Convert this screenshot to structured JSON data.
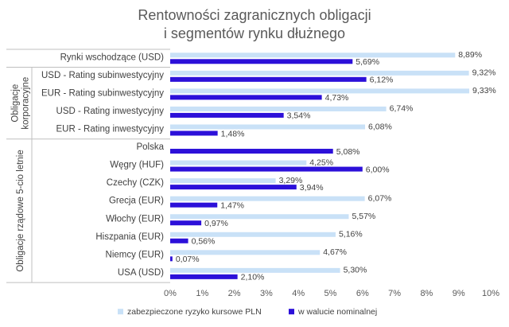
{
  "chart_data": {
    "type": "bar",
    "orientation": "horizontal",
    "title": "Rentowności zagranicznych obligacji i segmentów rynku dłużnego",
    "title_lines": [
      "Rentowności zagranicznych obligacji",
      "i segmentów rynku dłużnego"
    ],
    "categories": [
      "Rynki wschodzące (USD)",
      "USD - Rating subinwestycyjny",
      "EUR - Rating subinwestycyjny",
      "USD - Rating inwestycyjny",
      "EUR - Rating inwestycyjny",
      "Polska",
      "Węgry (HUF)",
      "Czechy (CZK)",
      "Grecja (EUR)",
      "Włochy (EUR)",
      "Hiszpania (EUR)",
      "Niemcy (EUR)",
      "USA (USD)"
    ],
    "groups": [
      {
        "label_lines": [
          "Obligacje",
          "korporacyjne"
        ],
        "first": 1,
        "last": 4
      },
      {
        "label_lines": [
          "Obligacje rządowe 5-cio letnie"
        ],
        "first": 5,
        "last": 12
      }
    ],
    "series": [
      {
        "name": "zabezpieczone ryzyko kursowe PLN",
        "color": "#c9e1f7",
        "values": [
          8.89,
          9.32,
          9.33,
          6.74,
          6.08,
          null,
          4.25,
          3.29,
          6.07,
          5.57,
          5.16,
          4.67,
          5.3
        ],
        "labels": [
          "8,89%",
          "9,32%",
          "9,33%",
          "6,74%",
          "6,08%",
          "",
          "4,25%",
          "3,29%",
          "6,07%",
          "5,57%",
          "5,16%",
          "4,67%",
          "5,30%"
        ]
      },
      {
        "name": "w walucie nominalnej",
        "color": "#2c10d9",
        "values": [
          5.69,
          6.12,
          4.73,
          3.54,
          1.48,
          5.08,
          6.0,
          3.94,
          1.47,
          0.97,
          0.56,
          0.07,
          2.1
        ],
        "labels": [
          "5,69%",
          "6,12%",
          "4,73%",
          "3,54%",
          "1,48%",
          "5,08%",
          "6,00%",
          "3,94%",
          "1,47%",
          "0,97%",
          "0,56%",
          "0,07%",
          "2,10%"
        ]
      }
    ],
    "xlim": [
      0,
      10
    ],
    "x_ticks": [
      "0%",
      "1%",
      "2%",
      "3%",
      "4%",
      "5%",
      "6%",
      "7%",
      "8%",
      "9%",
      "10%"
    ],
    "gridlines": false,
    "legend_position": "bottom"
  }
}
